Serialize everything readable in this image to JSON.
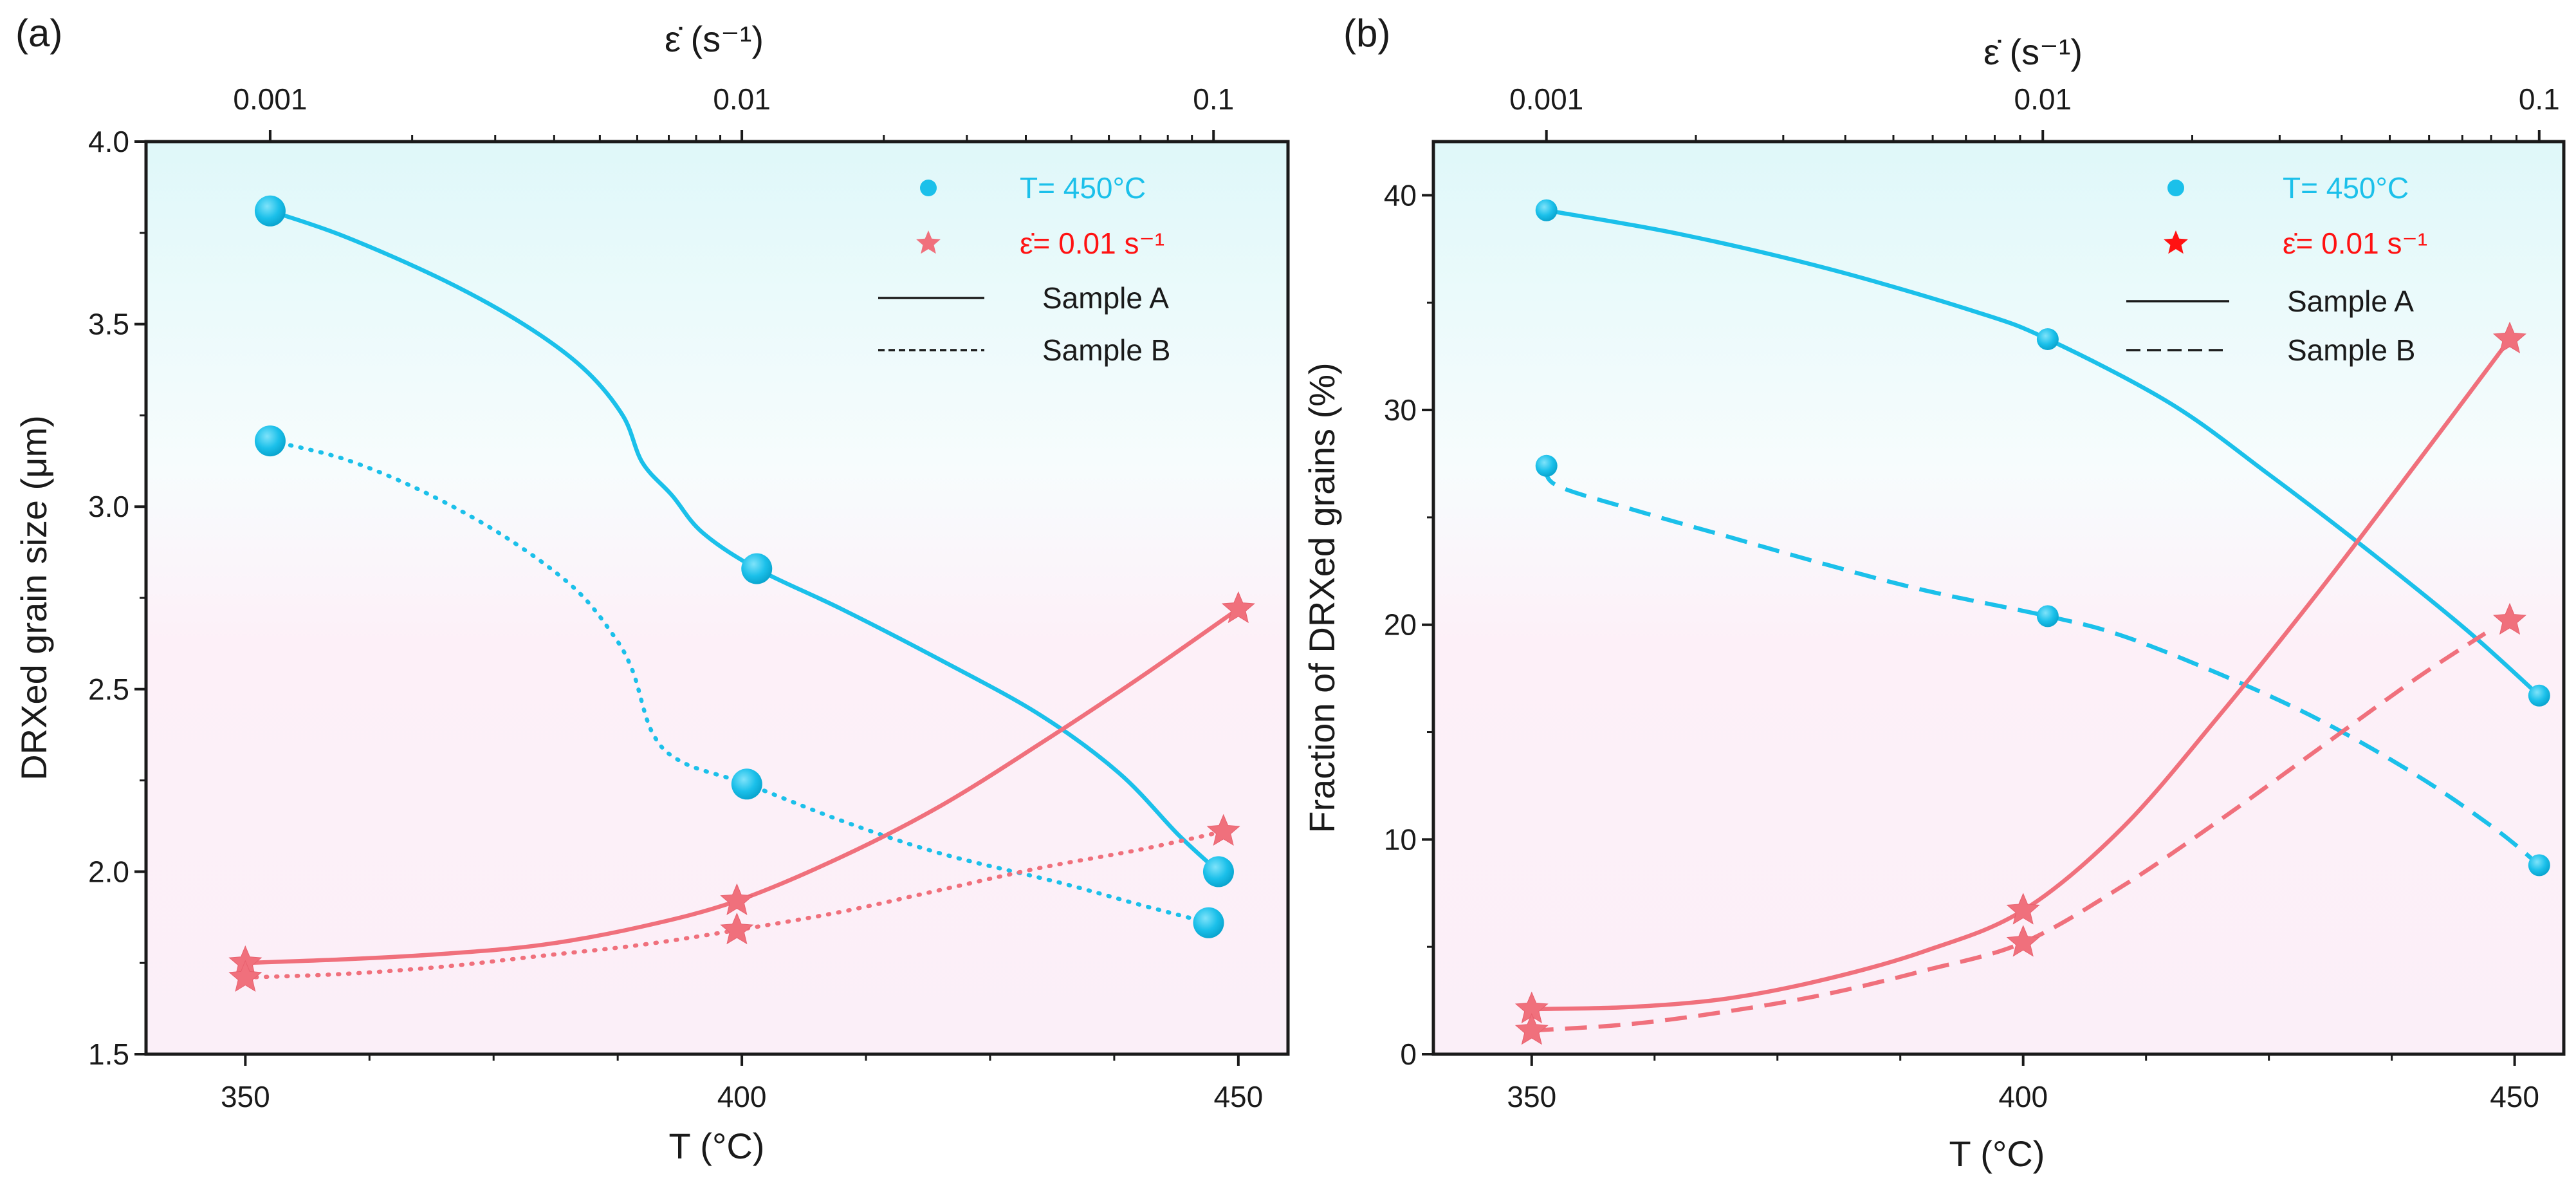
{
  "colors": {
    "cyan": "#1BC0EA",
    "pink": "#F0707C",
    "red": "#FF1212",
    "axis": "#1a1a1a"
  },
  "chart_data": [
    {
      "type": "line",
      "panel_label": "(a)",
      "xlabel": "T (°C)",
      "ylabel": "DRXed grain size (μm)",
      "top_axis_label": "ε̇ (s⁻¹)",
      "xlim": [
        340,
        455
      ],
      "ylim": [
        1.5,
        4.0
      ],
      "xticks": [
        "350",
        "400",
        "450"
      ],
      "yticks": [
        "1.5",
        "2.0",
        "2.5",
        "3.0",
        "3.5",
        "4.0"
      ],
      "top_ticks": [
        "0.001",
        "0.01",
        "0.1"
      ],
      "top_tick_positions": [
        352.5,
        400,
        447.5
      ],
      "legend": [
        {
          "symbol": "circle",
          "color": "cyan",
          "text": "T= 450°C"
        },
        {
          "symbol": "star",
          "color": "pink",
          "text": "ε̇= 0.01 s⁻¹",
          "text_color": "red"
        },
        {
          "symbol": "solid",
          "text": "Sample A"
        },
        {
          "symbol": "dotted",
          "text": "Sample B"
        }
      ],
      "series": [
        {
          "name": "Strain rate series, Sample A",
          "marker": "circle",
          "color": "cyan",
          "line": "solid",
          "x": [
            352.5,
            401.5,
            448.0
          ],
          "y": [
            3.81,
            2.83,
            2.0
          ],
          "curve": [
            [
              352.5,
              3.81
            ],
            [
              360,
              3.74
            ],
            [
              370,
              3.62
            ],
            [
              378,
              3.5
            ],
            [
              384,
              3.38
            ],
            [
              388,
              3.25
            ],
            [
              390,
              3.12
            ],
            [
              393,
              3.03
            ],
            [
              396,
              2.93
            ],
            [
              401.5,
              2.83
            ],
            [
              410,
              2.72
            ],
            [
              420,
              2.58
            ],
            [
              430,
              2.43
            ],
            [
              438,
              2.27
            ],
            [
              444,
              2.1
            ],
            [
              448,
              2.0
            ]
          ]
        },
        {
          "name": "Strain rate series, Sample B",
          "marker": "circle",
          "color": "cyan",
          "line": "dotted",
          "x": [
            352.5,
            400.5,
            447.0
          ],
          "y": [
            3.18,
            2.24,
            1.86
          ],
          "curve": [
            [
              352.5,
              3.18
            ],
            [
              360,
              3.13
            ],
            [
              368,
              3.04
            ],
            [
              376,
              2.92
            ],
            [
              383,
              2.78
            ],
            [
              387,
              2.65
            ],
            [
              389,
              2.55
            ],
            [
              391,
              2.38
            ],
            [
              394,
              2.3
            ],
            [
              400.5,
              2.24
            ],
            [
              410,
              2.14
            ],
            [
              420,
              2.05
            ],
            [
              432,
              1.97
            ],
            [
              440,
              1.91
            ],
            [
              447,
              1.86
            ]
          ]
        },
        {
          "name": "Temperature series, Sample A",
          "marker": "star",
          "color": "pink",
          "line": "solid",
          "x": [
            350,
            399.5,
            450
          ],
          "y": [
            1.75,
            1.92,
            2.72
          ],
          "curve": [
            [
              350,
              1.75
            ],
            [
              360,
              1.76
            ],
            [
              370,
              1.775
            ],
            [
              380,
              1.8
            ],
            [
              390,
              1.85
            ],
            [
              399.5,
              1.92
            ],
            [
              410,
              2.04
            ],
            [
              420,
              2.18
            ],
            [
              430,
              2.35
            ],
            [
              440,
              2.53
            ],
            [
              450,
              2.72
            ]
          ]
        },
        {
          "name": "Temperature series, Sample B",
          "marker": "star",
          "color": "pink",
          "line": "dotted",
          "x": [
            350,
            399.5,
            448.5
          ],
          "y": [
            1.71,
            1.84,
            2.11
          ],
          "curve": [
            [
              350,
              1.71
            ],
            [
              360,
              1.72
            ],
            [
              370,
              1.74
            ],
            [
              380,
              1.77
            ],
            [
              390,
              1.8
            ],
            [
              399.5,
              1.84
            ],
            [
              410,
              1.89
            ],
            [
              420,
              1.95
            ],
            [
              430,
              2.01
            ],
            [
              440,
              2.06
            ],
            [
              448.5,
              2.11
            ]
          ]
        }
      ]
    },
    {
      "type": "line",
      "panel_label": "(b)",
      "xlabel": "T (°C)",
      "ylabel": "Fraction of DRXed grains (%)",
      "top_axis_label": "ε̇ (s⁻¹)",
      "xlim": [
        340,
        455
      ],
      "ylim": [
        0,
        42.5
      ],
      "xticks": [
        "350",
        "400",
        "450"
      ],
      "yticks": [
        "0",
        "10",
        "20",
        "30",
        "40"
      ],
      "top_ticks": [
        "0.001",
        "0.01",
        "0.1"
      ],
      "top_tick_positions": [
        351.5,
        402,
        452.5
      ],
      "legend": [
        {
          "symbol": "circle",
          "color": "cyan",
          "text": "T= 450°C"
        },
        {
          "symbol": "star",
          "color": "red",
          "text": "ε̇= 0.01 s⁻¹",
          "text_color": "red"
        },
        {
          "symbol": "solid",
          "text": "Sample A"
        },
        {
          "symbol": "dashed",
          "text": "Sample B"
        }
      ],
      "series": [
        {
          "name": "Strain rate series, Sample A",
          "marker": "circle",
          "color": "cyan",
          "line": "solid",
          "x": [
            351.5,
            402.5,
            452.5
          ],
          "y": [
            39.3,
            33.3,
            16.7
          ],
          "curve": [
            [
              351.5,
              39.3
            ],
            [
              365,
              38.2
            ],
            [
              380,
              36.6
            ],
            [
              395,
              34.6
            ],
            [
              402.5,
              33.3
            ],
            [
              415,
              30.3
            ],
            [
              425,
              27.0
            ],
            [
              435,
              23.5
            ],
            [
              445,
              19.8
            ],
            [
              452.5,
              16.7
            ]
          ]
        },
        {
          "name": "Strain rate series, Sample B",
          "marker": "circle",
          "color": "cyan",
          "line": "dashed",
          "x": [
            351.5,
            402.5,
            452.5
          ],
          "y": [
            27.4,
            20.4,
            8.8
          ],
          "curve": [
            [
              351.5,
              27.4
            ],
            [
              352.5,
              26.5
            ],
            [
              360,
              25.4
            ],
            [
              370,
              24.1
            ],
            [
              380,
              22.8
            ],
            [
              390,
              21.6
            ],
            [
              402.5,
              20.4
            ],
            [
              410,
              19.5
            ],
            [
              420,
              17.7
            ],
            [
              430,
              15.6
            ],
            [
              440,
              13.0
            ],
            [
              448,
              10.5
            ],
            [
              452.5,
              8.8
            ]
          ]
        },
        {
          "name": "Temperature series, Sample A",
          "marker": "star",
          "color": "pink",
          "line": "solid",
          "x": [
            350,
            400,
            449.5
          ],
          "y": [
            2.1,
            6.7,
            33.3
          ],
          "curve": [
            [
              350,
              2.1
            ],
            [
              360,
              2.2
            ],
            [
              370,
              2.6
            ],
            [
              380,
              3.5
            ],
            [
              390,
              4.8
            ],
            [
              400,
              6.7
            ],
            [
              410,
              10.5
            ],
            [
              420,
              15.8
            ],
            [
              430,
              21.5
            ],
            [
              440,
              27.5
            ],
            [
              449.5,
              33.3
            ]
          ]
        },
        {
          "name": "Temperature series, Sample B",
          "marker": "star",
          "color": "pink",
          "line": "dashed",
          "x": [
            350,
            400,
            449.5
          ],
          "y": [
            1.1,
            5.2,
            20.2
          ],
          "curve": [
            [
              350,
              1.1
            ],
            [
              360,
              1.4
            ],
            [
              370,
              2.0
            ],
            [
              380,
              2.8
            ],
            [
              390,
              3.9
            ],
            [
              400,
              5.2
            ],
            [
              410,
              7.8
            ],
            [
              420,
              10.9
            ],
            [
              430,
              14.2
            ],
            [
              440,
              17.5
            ],
            [
              447,
              19.6
            ]
          ]
        }
      ]
    }
  ]
}
